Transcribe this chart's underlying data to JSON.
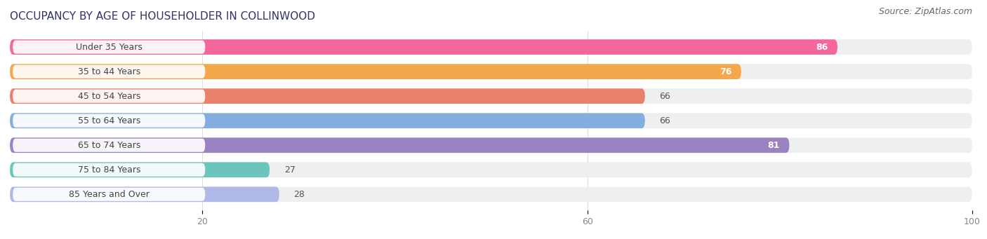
{
  "title": "OCCUPANCY BY AGE OF HOUSEHOLDER IN COLLINWOOD",
  "source": "Source: ZipAtlas.com",
  "categories": [
    "Under 35 Years",
    "35 to 44 Years",
    "45 to 54 Years",
    "55 to 64 Years",
    "65 to 74 Years",
    "75 to 84 Years",
    "85 Years and Over"
  ],
  "values": [
    86,
    76,
    66,
    66,
    81,
    27,
    28
  ],
  "bar_colors": [
    "#f4679d",
    "#f5a74b",
    "#e8806a",
    "#85aee0",
    "#9b82c0",
    "#6cc5bc",
    "#b0b8e8"
  ],
  "bar_bg_color": "#efefef",
  "label_pill_color": "#ffffff",
  "xlim": [
    0,
    100
  ],
  "xticks": [
    20,
    60,
    100
  ],
  "title_fontsize": 11,
  "source_fontsize": 9,
  "label_fontsize": 9,
  "value_fontsize": 9,
  "bar_height": 0.62,
  "background_color": "#ffffff",
  "value_inside_threshold": 70
}
